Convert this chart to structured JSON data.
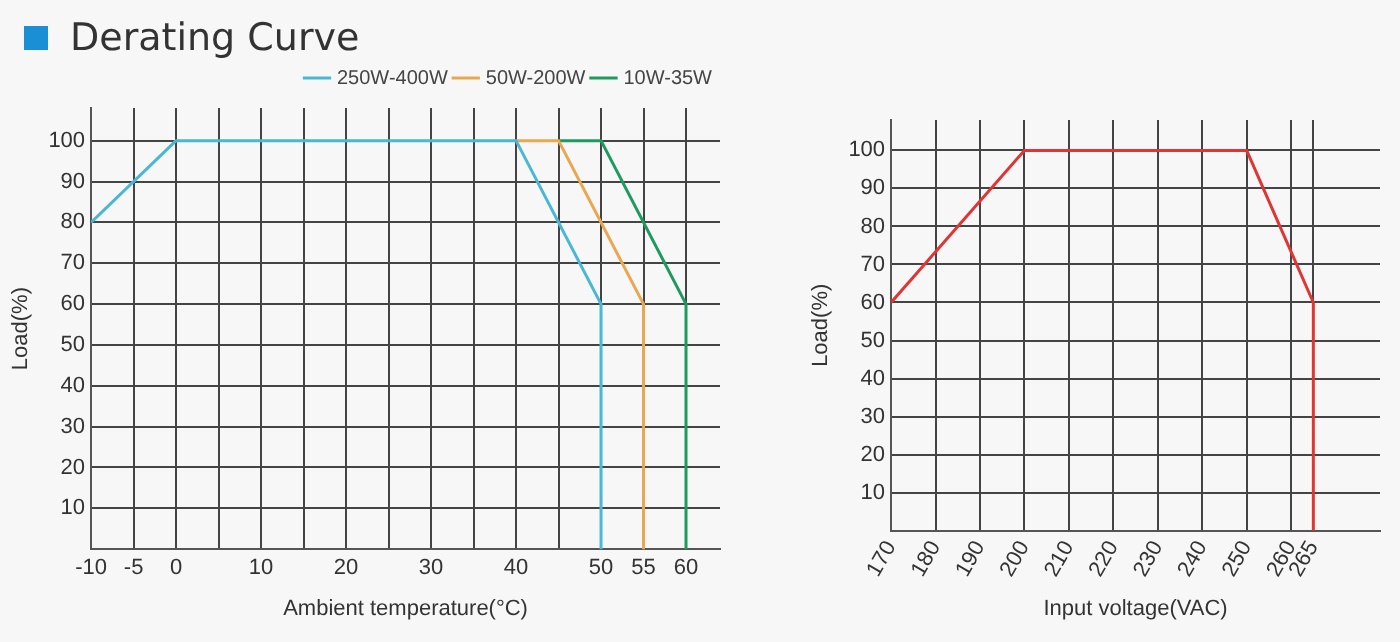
{
  "chart_data": [
    {
      "type": "line",
      "title": "Derating Curve",
      "xlabel": "Ambient temperature(°C)",
      "ylabel": "Load(%)",
      "xlim": [
        -10,
        64
      ],
      "xticks": [
        -10,
        -5,
        0,
        {
          "value": 5,
          "label": null
        },
        10,
        {
          "value": 15,
          "label": null
        },
        20,
        {
          "value": 25,
          "label": null
        },
        30,
        {
          "value": 35,
          "label": null
        },
        40,
        {
          "value": 45,
          "label": null
        },
        50,
        55,
        60
      ],
      "ylim": [
        0,
        108
      ],
      "yticks": [
        10,
        20,
        30,
        40,
        50,
        60,
        70,
        80,
        90,
        100
      ],
      "grid": true,
      "line_style": "solid",
      "marker": "none",
      "legend": "top right",
      "series": [
        {
          "name": "250W-400W",
          "color": "#4ab8d2",
          "x": [
            -10,
            0,
            40,
            50,
            50
          ],
          "values": [
            80,
            100,
            100,
            60,
            0
          ]
        },
        {
          "name": "50W-200W",
          "color": "#e8a850",
          "x": [
            40,
            45,
            55,
            55
          ],
          "values": [
            100,
            100,
            60,
            0
          ]
        },
        {
          "name": "10W-35W",
          "color": "#1e9a5e",
          "x": [
            45,
            50,
            60,
            60
          ],
          "values": [
            100,
            100,
            60,
            0
          ]
        }
      ]
    },
    {
      "type": "line",
      "xlabel": "Input voltage(VAC)",
      "ylabel": "Load(%)",
      "xlim": [
        170,
        280
      ],
      "xticks": [
        170,
        180,
        190,
        200,
        210,
        220,
        230,
        240,
        250,
        260,
        265
      ],
      "ylim": [
        0,
        108
      ],
      "yticks": [
        10,
        20,
        30,
        40,
        50,
        60,
        70,
        80,
        90,
        100
      ],
      "grid": true,
      "line_style": "solid",
      "marker": "none",
      "series": [
        {
          "color": "#e03535",
          "x": [
            170,
            200,
            250,
            265,
            265
          ],
          "values": [
            60,
            100,
            100,
            60,
            0
          ]
        }
      ]
    }
  ]
}
